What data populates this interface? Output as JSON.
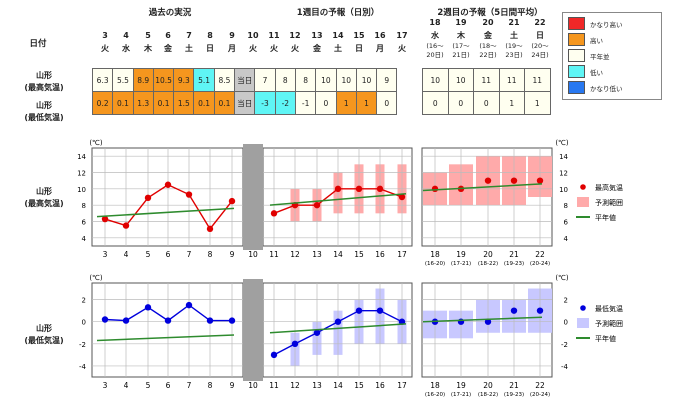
{
  "headers": {
    "date_label": "日付",
    "past": "過去の実況",
    "week1": "1週目の予報（日別）",
    "week2": "2週目の予報（5日間平均）"
  },
  "days": [
    {
      "d": "3",
      "w": "火"
    },
    {
      "d": "4",
      "w": "水"
    },
    {
      "d": "5",
      "w": "木"
    },
    {
      "d": "6",
      "w": "金"
    },
    {
      "d": "7",
      "w": "土"
    },
    {
      "d": "8",
      "w": "日"
    },
    {
      "d": "9",
      "w": "月"
    },
    {
      "d": "10",
      "w": "火"
    },
    {
      "d": "11",
      "w": "火"
    },
    {
      "d": "12",
      "w": "火"
    },
    {
      "d": "13",
      "w": "金"
    },
    {
      "d": "14",
      "w": "土"
    },
    {
      "d": "15",
      "w": "日"
    },
    {
      "d": "16",
      "w": "月"
    },
    {
      "d": "17",
      "w": "火"
    }
  ],
  "week2_days": [
    {
      "d": "18",
      "w": "水",
      "r1": "(16〜",
      "r2": "20日)"
    },
    {
      "d": "19",
      "w": "木",
      "r1": "(17〜",
      "r2": "21日)"
    },
    {
      "d": "20",
      "w": "金",
      "r1": "(18〜",
      "r2": "22日)"
    },
    {
      "d": "21",
      "w": "土",
      "r1": "(19〜",
      "r2": "23日)"
    },
    {
      "d": "22",
      "w": "日",
      "r1": "(20〜",
      "r2": "24日)"
    }
  ],
  "rows": {
    "max_label1": "山形",
    "max_label2": "(最高気温)",
    "min_label1": "山形",
    "min_label2": "(最低気温)",
    "max_cells": [
      "6.3",
      "5.5",
      "8.9",
      "10.5",
      "9.3",
      "5.1",
      "8.5",
      "当日",
      "7",
      "8",
      "8",
      "10",
      "10",
      "10",
      "9"
    ],
    "max_classes": [
      "n",
      "n",
      "o",
      "o",
      "o",
      "c",
      "n",
      "g",
      "n",
      "n",
      "n",
      "n",
      "n",
      "n",
      "n"
    ],
    "max_w2": [
      "10",
      "10",
      "11",
      "11",
      "11"
    ],
    "min_cells": [
      "0.2",
      "0.1",
      "1.3",
      "0.1",
      "1.5",
      "0.1",
      "0.1",
      "当日",
      "-3",
      "-2",
      "-1",
      "0",
      "1",
      "1",
      "0"
    ],
    "min_classes": [
      "o",
      "o",
      "o",
      "o",
      "o",
      "o",
      "o",
      "g",
      "c",
      "c",
      "n",
      "n",
      "o",
      "o",
      "n"
    ],
    "min_w2": [
      "0",
      "0",
      "0",
      "1",
      "1"
    ]
  },
  "legend": [
    {
      "label": "かなり高い",
      "color": "#f02828"
    },
    {
      "label": "高い",
      "color": "#f5961e"
    },
    {
      "label": "平年並",
      "color": "#fffff0"
    },
    {
      "label": "低い",
      "color": "#5ff5f5"
    },
    {
      "label": "かなり低い",
      "color": "#2878f0"
    }
  ],
  "colors": {
    "o": "#f5961e",
    "c": "#5ff5f5",
    "n": "#fffff0",
    "g": "#c8c8c8"
  },
  "chart_labels": {
    "max_chart_1": "山形",
    "max_chart_2": "(最高気温)",
    "min_chart_1": "山形",
    "min_chart_2": "(最低気温)",
    "unit": "(℃)"
  },
  "chart_legend_max": [
    {
      "label": "最高気温"
    },
    {
      "label": "予測範囲"
    },
    {
      "label": "平年値"
    }
  ],
  "chart_legend_min": [
    {
      "label": "最低気温"
    },
    {
      "label": "予測範囲"
    },
    {
      "label": "平年値"
    }
  ],
  "chart_data": [
    {
      "type": "line",
      "title": "山形 (最高気温)",
      "ylabel": "(℃)",
      "ylim": [
        3,
        15
      ],
      "yticks": [
        4,
        6,
        8,
        10,
        12,
        14
      ],
      "x": [
        "3",
        "4",
        "5",
        "6",
        "7",
        "8",
        "9",
        "10",
        "11",
        "12",
        "13",
        "14",
        "15",
        "16",
        "17",
        "18",
        "19",
        "20",
        "21",
        "22"
      ],
      "x_sub": {
        "18": "(16-20)",
        "19": "(17-21)",
        "20": "(18-22)",
        "21": "(19-23)",
        "22": "(20-24)"
      },
      "series": [
        {
          "name": "最高気温 (実況)",
          "x": [
            "3",
            "4",
            "5",
            "6",
            "7",
            "8",
            "9"
          ],
          "values": [
            6.3,
            5.5,
            8.9,
            10.5,
            9.3,
            5.1,
            8.5
          ],
          "color": "#e00000"
        },
        {
          "name": "最高気温 (1週目)",
          "x": [
            "11",
            "12",
            "13",
            "14",
            "15",
            "16",
            "17"
          ],
          "values": [
            7,
            8,
            8,
            10,
            10,
            10,
            9
          ],
          "color": "#e00000"
        },
        {
          "name": "最高気温 (2週目)",
          "x": [
            "18",
            "19",
            "20",
            "21",
            "22"
          ],
          "values": [
            10,
            10,
            11,
            11,
            11
          ],
          "color": "#e00000"
        },
        {
          "name": "平年値 (実況)",
          "x": [
            "3",
            "9"
          ],
          "values": [
            6.6,
            7.6
          ],
          "color": "#2e8b2e"
        },
        {
          "name": "平年値 (1週目)",
          "x": [
            "11",
            "17"
          ],
          "values": [
            8.0,
            9.4
          ],
          "color": "#2e8b2e"
        },
        {
          "name": "平年値 (2週目)",
          "x": [
            "18",
            "22"
          ],
          "values": [
            9.8,
            10.6
          ],
          "color": "#2e8b2e"
        }
      ],
      "ranges": {
        "x": [
          "12",
          "13",
          "14",
          "15",
          "16",
          "17",
          "18",
          "19",
          "20",
          "21",
          "22"
        ],
        "low": [
          6,
          6,
          7,
          7,
          7,
          7,
          8,
          8,
          8,
          8,
          9
        ],
        "high": [
          10,
          10,
          12,
          13,
          13,
          13,
          12,
          13,
          14,
          14,
          14
        ],
        "color": "#ffaaaa"
      }
    },
    {
      "type": "line",
      "title": "山形 (最低気温)",
      "ylabel": "(℃)",
      "ylim": [
        -5,
        3.5
      ],
      "yticks": [
        -4,
        -2,
        0,
        2
      ],
      "x": [
        "3",
        "4",
        "5",
        "6",
        "7",
        "8",
        "9",
        "10",
        "11",
        "12",
        "13",
        "14",
        "15",
        "16",
        "17",
        "18",
        "19",
        "20",
        "21",
        "22"
      ],
      "x_sub": {
        "18": "(16-20)",
        "19": "(17-21)",
        "20": "(18-22)",
        "21": "(19-23)",
        "22": "(20-24)"
      },
      "series": [
        {
          "name": "最低気温 (実況)",
          "x": [
            "3",
            "4",
            "5",
            "6",
            "7",
            "8",
            "9"
          ],
          "values": [
            0.2,
            0.1,
            1.3,
            0.1,
            1.5,
            0.1,
            0.1
          ],
          "color": "#0000dd"
        },
        {
          "name": "最低気温 (1週目)",
          "x": [
            "11",
            "12",
            "13",
            "14",
            "15",
            "16",
            "17"
          ],
          "values": [
            -3,
            -2,
            -1,
            0,
            1,
            1,
            0
          ],
          "color": "#0000dd"
        },
        {
          "name": "最低気温 (2週目)",
          "x": [
            "18",
            "19",
            "20",
            "21",
            "22"
          ],
          "values": [
            0,
            0,
            0,
            1,
            1
          ],
          "color": "#0000dd"
        },
        {
          "name": "平年値 (実況)",
          "x": [
            "3",
            "9"
          ],
          "values": [
            -1.7,
            -1.2
          ],
          "color": "#2e8b2e"
        },
        {
          "name": "平年値 (1週目)",
          "x": [
            "11",
            "17"
          ],
          "values": [
            -1.0,
            -0.2
          ],
          "color": "#2e8b2e"
        },
        {
          "name": "平年値 (2週目)",
          "x": [
            "18",
            "22"
          ],
          "values": [
            0.0,
            0.4
          ],
          "color": "#2e8b2e"
        }
      ],
      "ranges": {
        "x": [
          "12",
          "13",
          "14",
          "15",
          "16",
          "17",
          "18",
          "19",
          "20",
          "21",
          "22"
        ],
        "low": [
          -4,
          -3,
          -3,
          -2,
          -2,
          -2,
          -1.5,
          -1.5,
          -1,
          -1,
          -1
        ],
        "high": [
          -1,
          0,
          1,
          2,
          3,
          2,
          1,
          1,
          2,
          2,
          3
        ],
        "color": "#c8c8ff"
      }
    }
  ]
}
